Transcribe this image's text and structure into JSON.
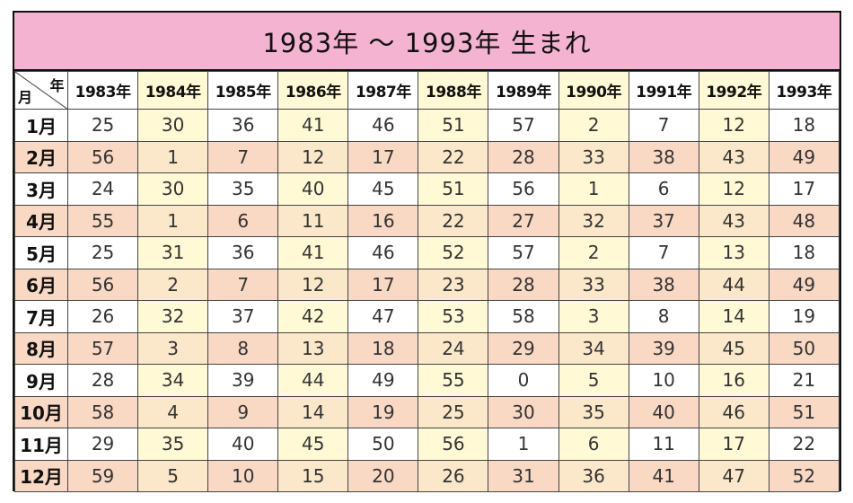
{
  "title": "1983年 ～ 1993年 生まれ",
  "corner": {
    "year_label": "年",
    "month_label": "月"
  },
  "years": [
    "1983年",
    "1984年",
    "1985年",
    "1986年",
    "1987年",
    "1988年",
    "1989年",
    "1990年",
    "1991年",
    "1992年",
    "1993年"
  ],
  "months": [
    "1月",
    "2月",
    "3月",
    "4月",
    "5月",
    "6月",
    "7月",
    "8月",
    "9月",
    "10月",
    "11月",
    "12月"
  ],
  "rows": [
    [
      "25",
      "30",
      "36",
      "41",
      "46",
      "51",
      "57",
      "2",
      "7",
      "12",
      "18"
    ],
    [
      "56",
      "1",
      "7",
      "12",
      "17",
      "22",
      "28",
      "33",
      "38",
      "43",
      "49"
    ],
    [
      "24",
      "30",
      "35",
      "40",
      "45",
      "51",
      "56",
      "1",
      "6",
      "12",
      "17"
    ],
    [
      "55",
      "1",
      "6",
      "11",
      "16",
      "22",
      "27",
      "32",
      "37",
      "43",
      "48"
    ],
    [
      "25",
      "31",
      "36",
      "41",
      "46",
      "52",
      "57",
      "2",
      "7",
      "13",
      "18"
    ],
    [
      "56",
      "2",
      "7",
      "12",
      "17",
      "23",
      "28",
      "33",
      "38",
      "44",
      "49"
    ],
    [
      "26",
      "32",
      "37",
      "42",
      "47",
      "53",
      "58",
      "3",
      "8",
      "14",
      "19"
    ],
    [
      "57",
      "3",
      "8",
      "13",
      "18",
      "24",
      "29",
      "34",
      "39",
      "45",
      "50"
    ],
    [
      "28",
      "34",
      "39",
      "44",
      "49",
      "55",
      "0",
      "5",
      "10",
      "16",
      "21"
    ],
    [
      "58",
      "4",
      "9",
      "14",
      "19",
      "25",
      "30",
      "35",
      "40",
      "46",
      "51"
    ],
    [
      "29",
      "35",
      "40",
      "45",
      "50",
      "56",
      "1",
      "6",
      "11",
      "17",
      "22"
    ],
    [
      "59",
      "5",
      "10",
      "15",
      "20",
      "26",
      "31",
      "36",
      "41",
      "47",
      "52"
    ]
  ],
  "colors": {
    "title_bg": "#f5b3d2",
    "row_pink": "#f9d8c4",
    "col_yellow": "#fff9d6"
  }
}
